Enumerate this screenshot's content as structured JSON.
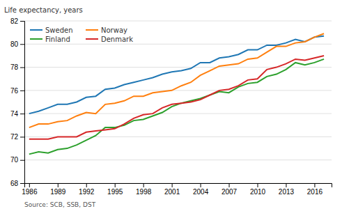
{
  "chart_data": {
    "type": "line",
    "ylabel": "Life expectancy, years",
    "annotations": [
      "Source: SCB, SSB, DST"
    ],
    "x": [
      1986,
      1987,
      1988,
      1989,
      1990,
      1991,
      1992,
      1993,
      1994,
      1995,
      1996,
      1997,
      1998,
      1999,
      2000,
      2001,
      2002,
      2003,
      2004,
      2005,
      2006,
      2007,
      2008,
      2009,
      2010,
      2011,
      2012,
      2013,
      2014,
      2015,
      2016,
      2017
    ],
    "series": [
      {
        "name": "Sweden",
        "values": [
          74.0,
          74.2,
          74.5,
          74.8,
          74.8,
          75.0,
          75.4,
          75.5,
          76.1,
          76.2,
          76.5,
          76.7,
          76.9,
          77.1,
          77.4,
          77.6,
          77.7,
          77.9,
          78.4,
          78.4,
          78.8,
          78.9,
          79.1,
          79.5,
          79.5,
          79.9,
          79.9,
          80.1,
          80.4,
          80.2,
          80.6,
          80.7
        ]
      },
      {
        "name": "Norway",
        "values": [
          72.8,
          73.1,
          73.1,
          73.3,
          73.4,
          73.8,
          74.1,
          74.0,
          74.8,
          74.9,
          75.1,
          75.5,
          75.5,
          75.8,
          75.9,
          76.0,
          76.4,
          76.7,
          77.3,
          77.7,
          78.1,
          78.2,
          78.3,
          78.7,
          78.8,
          79.3,
          79.8,
          79.8,
          80.1,
          80.2,
          80.6,
          80.9
        ]
      },
      {
        "name": "Finland",
        "values": [
          70.5,
          70.7,
          70.6,
          70.9,
          71.0,
          71.3,
          71.7,
          72.1,
          72.8,
          72.8,
          73.0,
          73.4,
          73.5,
          73.8,
          74.1,
          74.6,
          74.9,
          75.1,
          75.3,
          75.6,
          75.9,
          75.8,
          76.3,
          76.6,
          76.7,
          77.2,
          77.4,
          77.8,
          78.4,
          78.2,
          78.4,
          78.7
        ]
      },
      {
        "name": "Denmark",
        "values": [
          71.8,
          71.8,
          71.8,
          72.0,
          72.0,
          72.0,
          72.4,
          72.5,
          72.6,
          72.7,
          73.1,
          73.6,
          73.9,
          74.0,
          74.5,
          74.8,
          74.9,
          75.0,
          75.2,
          75.6,
          76.0,
          76.1,
          76.4,
          76.9,
          77.0,
          77.8,
          78.0,
          78.3,
          78.7,
          78.6,
          78.8,
          79.0
        ]
      }
    ],
    "xlim": [
      1985.5,
      2017.8
    ],
    "xticks": [
      1986,
      1989,
      1992,
      1995,
      1998,
      2001,
      2004,
      2007,
      2010,
      2013,
      2016
    ],
    "ylim": [
      68,
      82
    ],
    "yticks": [
      68,
      70,
      72,
      74,
      76,
      78,
      80,
      82
    ],
    "grid": true,
    "legend": "upper left"
  }
}
